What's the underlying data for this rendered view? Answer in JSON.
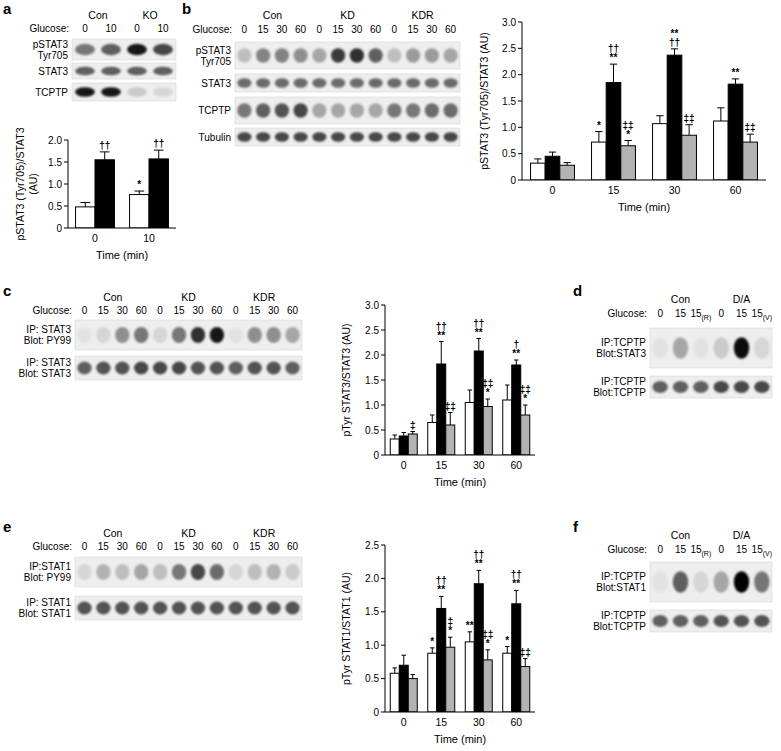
{
  "chart_data": [
    {
      "type": "bar",
      "y_label": [
        "pSTAT3 (Tyr705)/STAT3",
        "(AU)"
      ],
      "x_label": "Time (min)",
      "categories": [
        "0",
        "10"
      ],
      "ylim": [
        0,
        2
      ],
      "yticks": [
        0,
        0.5,
        {
          "value": 1,
          "label": "1.0"
        },
        1.5,
        {
          "value": 2,
          "label": "2.0"
        }
      ],
      "series": [
        {
          "color": "#ffffff",
          "values": [
            0.48,
            0.76
          ],
          "errors": [
            0.1,
            0.08
          ],
          "significance": [
            null,
            [
              "*"
            ]
          ]
        },
        {
          "color": "#000000",
          "values": [
            1.55,
            1.57
          ],
          "errors": [
            0.18,
            0.2
          ],
          "significance": [
            [
              "††"
            ],
            [
              "††"
            ]
          ]
        }
      ]
    },
    {
      "type": "bar",
      "y_label": [
        "pSTAT3 (Tyr705)/STAT3 (AU)"
      ],
      "x_label": "Time (min)",
      "categories": [
        "0",
        "15",
        "30",
        "60"
      ],
      "ylim": [
        0,
        3
      ],
      "yticks": [
        0,
        0.5,
        {
          "value": 1,
          "label": "1.0"
        },
        1.5,
        {
          "value": 2,
          "label": "2.0"
        },
        2.5,
        {
          "value": 3,
          "label": "3.0"
        }
      ],
      "series": [
        {
          "color": "#ffffff",
          "values": [
            0.32,
            0.72,
            1.07,
            1.12
          ],
          "errors": [
            0.08,
            0.2,
            0.15,
            0.25
          ],
          "significance": [
            null,
            [
              "*"
            ],
            null,
            null
          ]
        },
        {
          "color": "#000000",
          "values": [
            0.45,
            1.85,
            2.37,
            1.82
          ],
          "errors": [
            0.08,
            0.35,
            0.12,
            0.1
          ],
          "significance": [
            null,
            [
              "††",
              "**"
            ],
            [
              "**",
              "††"
            ],
            [
              "**"
            ]
          ]
        },
        {
          "color": "#b3b3b3",
          "values": [
            0.28,
            0.65,
            0.85,
            0.72
          ],
          "errors": [
            0.05,
            0.1,
            0.2,
            0.15
          ],
          "significance": [
            null,
            [
              "‡‡",
              "*"
            ],
            [
              "‡‡"
            ],
            [
              "‡‡"
            ]
          ]
        }
      ]
    },
    {
      "type": "bar",
      "y_label": [
        "pTyr STAT3/STAT3 (AU)"
      ],
      "x_label": "Time (min)",
      "categories": [
        "0",
        "15",
        "30",
        "60"
      ],
      "ylim": [
        0,
        3
      ],
      "yticks": [
        0,
        0.5,
        {
          "value": 1,
          "label": "1.0"
        },
        1.5,
        {
          "value": 2,
          "label": "2.0"
        },
        2.5,
        {
          "value": 3,
          "label": "3.0"
        }
      ],
      "series": [
        {
          "color": "#ffffff",
          "values": [
            0.32,
            0.65,
            1.05,
            1.1
          ],
          "errors": [
            0.08,
            0.15,
            0.25,
            0.3
          ],
          "significance": [
            null,
            null,
            null,
            null
          ]
        },
        {
          "color": "#000000",
          "values": [
            0.38,
            1.82,
            2.08,
            1.8
          ],
          "errors": [
            0.07,
            0.45,
            0.25,
            0.1
          ],
          "significance": [
            null,
            [
              "††",
              "**"
            ],
            [
              "††",
              "**"
            ],
            [
              "†",
              "**"
            ]
          ]
        },
        {
          "color": "#b3b3b3",
          "values": [
            0.42,
            0.6,
            0.97,
            0.8
          ],
          "errors": [
            0.05,
            0.25,
            0.15,
            0.2
          ],
          "significance": [
            [
              "‡"
            ],
            [
              "‡‡"
            ],
            [
              "‡‡",
              "*"
            ],
            [
              "‡‡",
              "*"
            ]
          ]
        }
      ]
    },
    {
      "type": "bar",
      "y_label": [
        "pTyr STAT1/STAT1 (AU)"
      ],
      "x_label": "Time (min)",
      "categories": [
        "0",
        "15",
        "30",
        "60"
      ],
      "ylim": [
        0,
        2.5
      ],
      "yticks": [
        0,
        0.5,
        {
          "value": 1,
          "label": "1.0"
        },
        1.5,
        {
          "value": 2,
          "label": "2.0"
        },
        2.5
      ],
      "series": [
        {
          "color": "#ffffff",
          "values": [
            0.58,
            0.88,
            1.05,
            0.88
          ],
          "errors": [
            0.08,
            0.08,
            0.15,
            0.1
          ],
          "significance": [
            null,
            [
              "*"
            ],
            [
              "**"
            ],
            [
              "*"
            ]
          ]
        },
        {
          "color": "#000000",
          "values": [
            0.7,
            1.55,
            1.92,
            1.62
          ],
          "errors": [
            0.15,
            0.18,
            0.2,
            0.2
          ],
          "significance": [
            null,
            [
              "††",
              "**"
            ],
            [
              "††",
              "**"
            ],
            [
              "††",
              "**"
            ]
          ]
        },
        {
          "color": "#b3b3b3",
          "values": [
            0.5,
            0.97,
            0.78,
            0.68
          ],
          "errors": [
            0.06,
            0.15,
            0.15,
            0.12
          ],
          "significance": [
            null,
            [
              "‡",
              "*"
            ],
            [
              "‡‡",
              "*"
            ],
            [
              "‡‡"
            ]
          ]
        }
      ]
    }
  ],
  "blots": [
    {
      "letter": "a",
      "glucose_label": "Glucose:",
      "groups": [
        {
          "label": "Con",
          "lanes": [
            "0",
            "10"
          ]
        },
        {
          "label": "KO",
          "lanes": [
            "0",
            "10"
          ]
        }
      ],
      "rows": [
        {
          "label": [
            "pSTAT3",
            "Tyr705"
          ],
          "bands": [
            0.5,
            0.6,
            0.9,
            0.7
          ]
        },
        {
          "label": [
            "STAT3"
          ],
          "bands": [
            0.6,
            0.6,
            0.6,
            0.6
          ]
        },
        {
          "label": [
            "TCPTP"
          ],
          "bands": [
            0.9,
            0.9,
            0.15,
            0.1
          ]
        }
      ]
    },
    {
      "letter": "b",
      "glucose_label": "Glucose:",
      "groups": [
        {
          "label": "Con",
          "lanes": [
            "0",
            "15",
            "30",
            "60"
          ]
        },
        {
          "label": "KD",
          "lanes": [
            "0",
            "15",
            "30",
            "60"
          ]
        },
        {
          "label": "KDR",
          "lanes": [
            "0",
            "15",
            "30",
            "60"
          ]
        }
      ],
      "rows": [
        {
          "label": [
            "pSTAT3",
            "Tyr705"
          ],
          "bands": [
            0.2,
            0.45,
            0.45,
            0.4,
            0.3,
            0.75,
            0.8,
            0.6,
            0.2,
            0.35,
            0.35,
            0.3
          ]
        },
        {
          "label": [
            "STAT3"
          ],
          "bands": [
            0.55,
            0.55,
            0.55,
            0.55,
            0.55,
            0.55,
            0.55,
            0.55,
            0.55,
            0.55,
            0.55,
            0.55
          ]
        },
        {
          "label": [
            "TCPTP"
          ],
          "bands": [
            0.5,
            0.6,
            0.65,
            0.7,
            0.3,
            0.3,
            0.3,
            0.3,
            0.5,
            0.5,
            0.55,
            0.55
          ]
        },
        {
          "label": [
            "Tubulin"
          ],
          "bands": [
            0.7,
            0.7,
            0.7,
            0.7,
            0.7,
            0.7,
            0.7,
            0.7,
            0.7,
            0.7,
            0.7,
            0.7
          ]
        }
      ]
    },
    {
      "letter": "c",
      "glucose_label": "Glucose:",
      "groups": [
        {
          "label": "Con",
          "lanes": [
            "0",
            "15",
            "30",
            "60"
          ]
        },
        {
          "label": "KD",
          "lanes": [
            "0",
            "15",
            "30",
            "60"
          ]
        },
        {
          "label": "KDR",
          "lanes": [
            "0",
            "15",
            "30",
            "60"
          ]
        }
      ],
      "rows": [
        {
          "label": [
            "IP: STAT3",
            "Blot: PY99"
          ],
          "bands": [
            0.05,
            0.1,
            0.4,
            0.5,
            0.1,
            0.5,
            0.8,
            0.9,
            0.05,
            0.4,
            0.4,
            0.3
          ]
        },
        {
          "label": [
            "IP: STAT3",
            "Blot: STAT3"
          ],
          "bands": [
            0.6,
            0.65,
            0.65,
            0.7,
            0.7,
            0.7,
            0.65,
            0.65,
            0.6,
            0.65,
            0.65,
            0.6
          ]
        }
      ]
    },
    {
      "letter": "d",
      "glucose_label": "Glucose:",
      "groups": [
        {
          "label": "Con",
          "lanes": [
            "0",
            "15",
            "15(R)"
          ]
        },
        {
          "label": "D/A",
          "lanes": [
            "0",
            "15",
            "15(V)"
          ]
        }
      ],
      "rows": [
        {
          "label": [
            "IP:TCPTP",
            "Blot:STAT3"
          ],
          "bands": [
            0.05,
            0.3,
            0.05,
            0.15,
            0.95,
            0.1
          ]
        },
        {
          "label": [
            "IP:TCPTP",
            "Blot:TCPTP"
          ],
          "bands": [
            0.6,
            0.6,
            0.6,
            0.7,
            0.7,
            0.7
          ]
        }
      ]
    },
    {
      "letter": "e",
      "glucose_label": "Glucose:",
      "groups": [
        {
          "label": "Con",
          "lanes": [
            "0",
            "15",
            "30",
            "60"
          ]
        },
        {
          "label": "KD",
          "lanes": [
            "0",
            "15",
            "30",
            "60"
          ]
        },
        {
          "label": "KDR",
          "lanes": [
            "0",
            "15",
            "30",
            "60"
          ]
        }
      ],
      "rows": [
        {
          "label": [
            "IP:STAT1",
            "Blot: PY99"
          ],
          "bands": [
            0.1,
            0.25,
            0.2,
            0.3,
            0.2,
            0.5,
            0.7,
            0.55,
            0.1,
            0.2,
            0.25,
            0.15
          ]
        },
        {
          "label": [
            "IP: STAT1",
            "Blot: STAT1"
          ],
          "bands": [
            0.65,
            0.65,
            0.65,
            0.65,
            0.65,
            0.65,
            0.65,
            0.65,
            0.65,
            0.65,
            0.65,
            0.65
          ]
        }
      ]
    },
    {
      "letter": "f",
      "glucose_label": "Glucose:",
      "groups": [
        {
          "label": "Con",
          "lanes": [
            "0",
            "15",
            "15(R)"
          ]
        },
        {
          "label": "D/A",
          "lanes": [
            "0",
            "15",
            "15(V)"
          ]
        }
      ],
      "rows": [
        {
          "label": [
            "IP:TCPTP",
            "Blot:STAT1"
          ],
          "bands": [
            0.05,
            0.6,
            0.1,
            0.3,
            1.0,
            0.5
          ]
        },
        {
          "label": [
            "IP:TCPTP",
            "Blot:TCPTP"
          ],
          "bands": [
            0.6,
            0.6,
            0.6,
            0.65,
            0.65,
            0.65
          ]
        }
      ]
    }
  ]
}
